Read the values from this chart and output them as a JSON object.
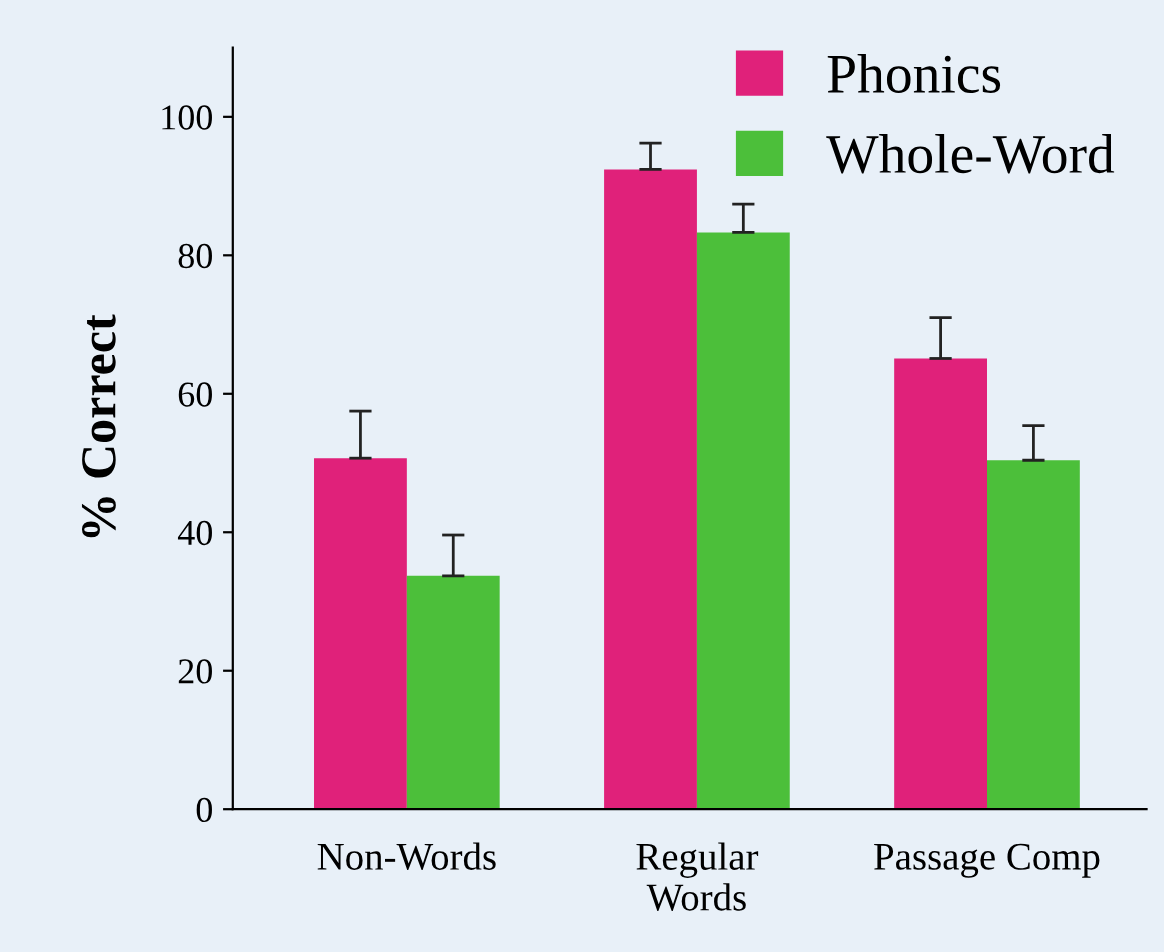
{
  "chart_data": {
    "type": "bar",
    "ylabel": "% Correct",
    "categories": [
      "Non-Words",
      "Regular\nWords",
      "Passage Comp"
    ],
    "series": [
      {
        "name": "Phonics",
        "color": "#e0217a",
        "values": [
          50.7,
          92.4,
          65.1
        ],
        "errors": [
          [
            50.7,
            57.5
          ],
          [
            92.4,
            96.2
          ],
          [
            65.1,
            71
          ]
        ]
      },
      {
        "name": "Whole-Word",
        "color": "#4cbf3a",
        "values": [
          33.7,
          83.3,
          50.4
        ],
        "errors": [
          [
            33.7,
            39.6
          ],
          [
            83.3,
            87.4
          ],
          [
            50.4,
            55.4
          ]
        ]
      }
    ],
    "ylim": [
      0,
      110
    ],
    "yticks": [
      0,
      20,
      40,
      60,
      80,
      100
    ],
    "grid": false,
    "legend": "top right"
  }
}
